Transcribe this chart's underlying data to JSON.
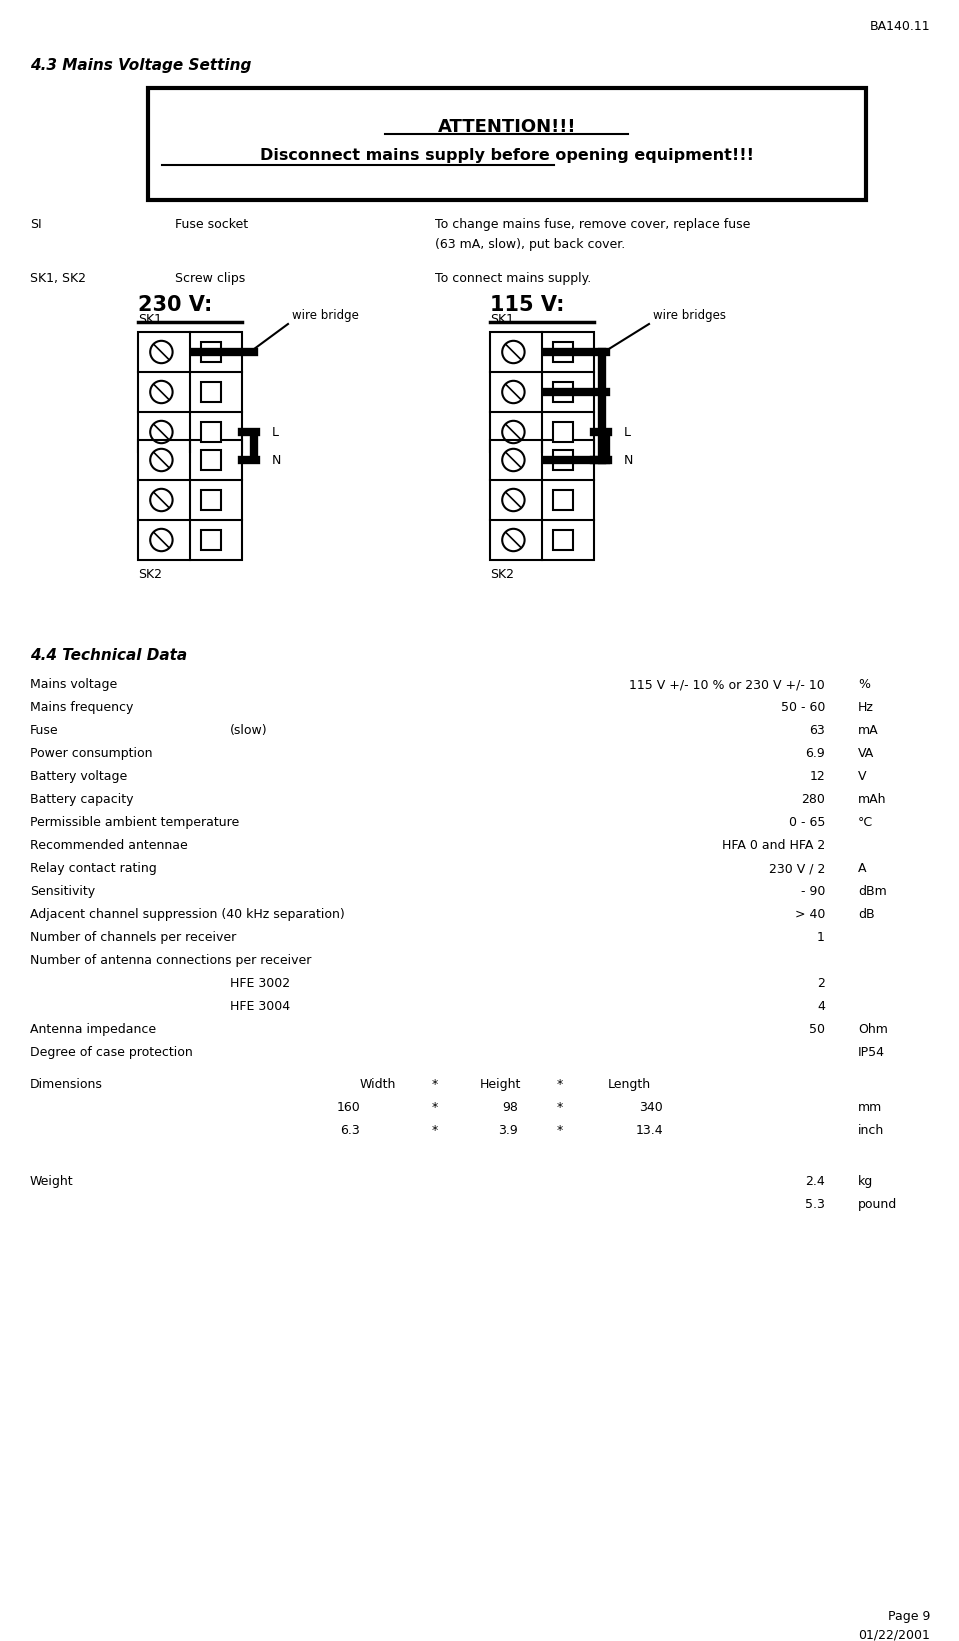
{
  "bg_color": "#ffffff",
  "page_width": 9.59,
  "page_height": 16.41,
  "dpi": 100,
  "header_ref": "BA140.11",
  "section_43_title": "4.3 Mains Voltage Setting",
  "attention_line1": "ATTENTION!!!",
  "attention_line2": "Disconnect mains supply before opening equipment!!!",
  "si_label": "SI",
  "si_name": "Fuse socket",
  "si_desc1": "To change mains fuse, remove cover, replace fuse",
  "si_desc2": "(63 mA, slow), put back cover.",
  "sk_label": "SK1, SK2",
  "sk_name": "Screw clips",
  "sk_desc": "To connect mains supply.",
  "voltage_230": "230 V:",
  "voltage_115": "115 V:",
  "label_sk1": "SK1",
  "label_sk2": "SK2",
  "label_wire_bridge": "wire bridge",
  "label_wire_bridges": "wire bridges",
  "label_L": "L",
  "label_N": "N",
  "section_44_title": "4.4 Technical Data",
  "tech_data": [
    {
      "label": "Mains voltage",
      "mid": "",
      "value": "115 V +/- 10 % or 230 V +/- 10",
      "unit": "%"
    },
    {
      "label": "Mains frequency",
      "mid": "",
      "value": "50 - 60",
      "unit": "Hz"
    },
    {
      "label": "Fuse",
      "mid": "(slow)",
      "value": "63",
      "unit": "mA"
    },
    {
      "label": "Power consumption",
      "mid": "",
      "value": "6.9",
      "unit": "VA"
    },
    {
      "label": "Battery voltage",
      "mid": "",
      "value": "12",
      "unit": "V"
    },
    {
      "label": "Battery capacity",
      "mid": "",
      "value": "280",
      "unit": "mAh"
    },
    {
      "label": "Permissible ambient temperature",
      "mid": "",
      "value": "0 - 65",
      "unit": "°C"
    },
    {
      "label": "Recommended antennae",
      "mid": "",
      "value": "HFA 0 and HFA 2",
      "unit": ""
    },
    {
      "label": "Relay contact rating",
      "mid": "",
      "value": "230 V / 2",
      "unit": "A"
    },
    {
      "label": "Sensitivity",
      "mid": "",
      "value": "- 90",
      "unit": "dBm"
    },
    {
      "label": "Adjacent channel suppression (40 kHz separation)",
      "mid": "",
      "value": "> 40",
      "unit": "dB"
    },
    {
      "label": "Number of channels per receiver",
      "mid": "",
      "value": "1",
      "unit": ""
    },
    {
      "label": "Number of antenna connections per receiver",
      "mid": "",
      "value": "",
      "unit": ""
    },
    {
      "label": "",
      "mid": "HFE 3002",
      "value": "2",
      "unit": ""
    },
    {
      "label": "",
      "mid": "HFE 3004",
      "value": "4",
      "unit": ""
    },
    {
      "label": "Antenna impedance",
      "mid": "",
      "value": "50",
      "unit": "Ohm"
    },
    {
      "label": "Degree of case protection",
      "mid": "",
      "value": "",
      "unit": "IP54"
    }
  ],
  "dim_label": "Dimensions",
  "dim_headers": [
    "Width",
    "*",
    "Height",
    "*",
    "Length"
  ],
  "dim_row1": [
    "160",
    "*",
    "98",
    "*",
    "340",
    "mm"
  ],
  "dim_row2": [
    "6.3",
    "*",
    "3.9",
    "*",
    "13.4",
    "inch"
  ],
  "weight_label": "Weight",
  "weight_row1": [
    "2.4",
    "kg"
  ],
  "weight_row2": [
    "5.3",
    "pound"
  ],
  "footer_page": "Page 9",
  "footer_date": "01/22/2001"
}
